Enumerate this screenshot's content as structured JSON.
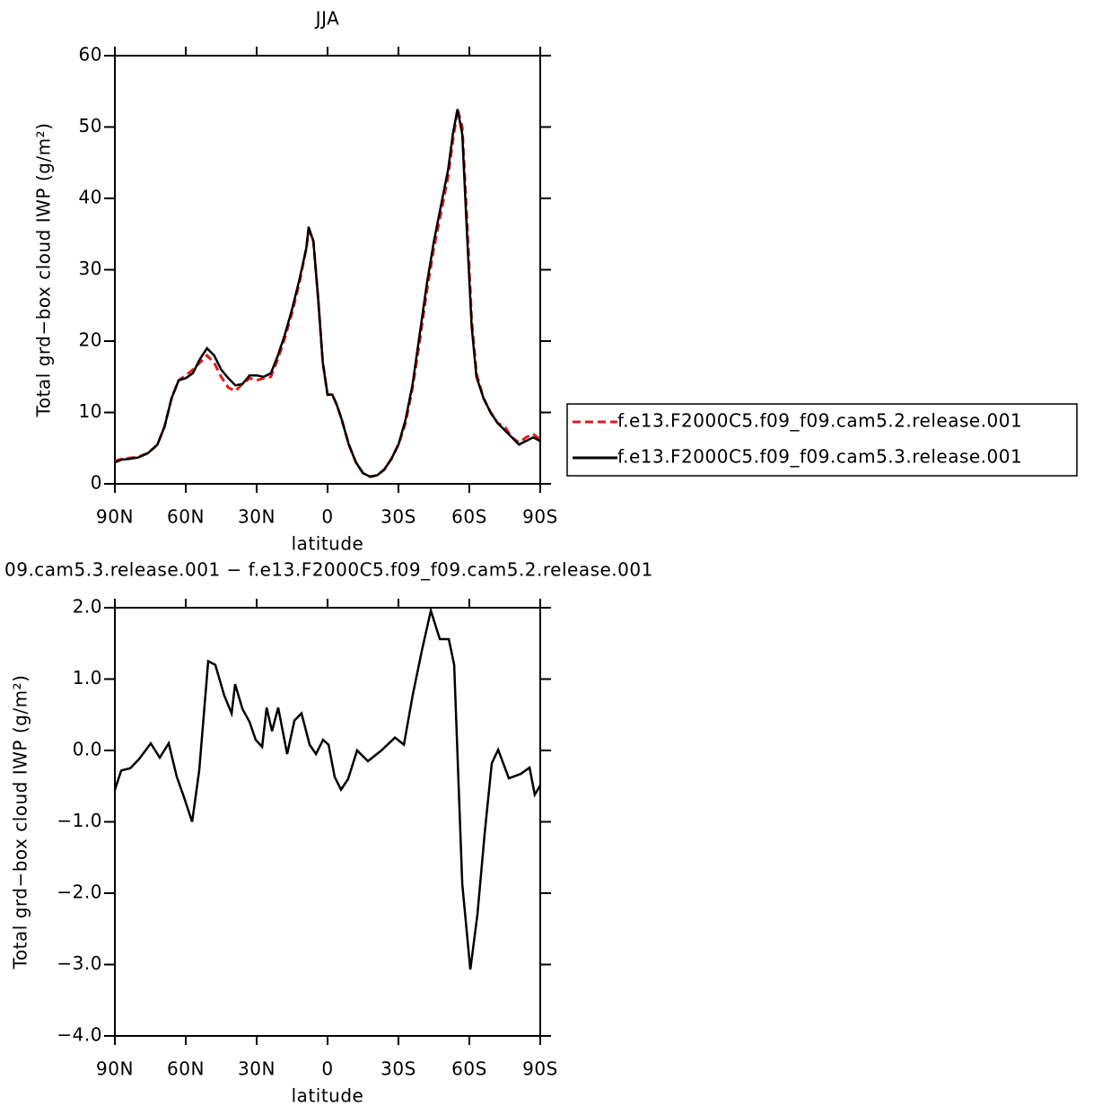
{
  "chart_data": [
    {
      "type": "line",
      "title": "JJA",
      "xlabel": "latitude",
      "ylabel": "Total grd−box cloud IWP (g/m²)",
      "x": [
        90,
        87,
        84,
        80,
        76,
        72,
        69,
        66,
        63,
        60,
        57,
        54,
        51,
        48,
        45,
        42,
        39,
        36,
        33,
        30,
        27,
        24,
        21,
        18,
        15,
        12,
        9,
        8,
        6,
        4,
        2,
        0,
        -2,
        -4,
        -6,
        -9,
        -12,
        -15,
        -18,
        -21,
        -24,
        -27,
        -30,
        -33,
        -36,
        -39,
        -42,
        -45,
        -48,
        -51,
        -53,
        -55,
        -57,
        -59,
        -61,
        -63,
        -66,
        -69,
        -72,
        -75,
        -78,
        -81,
        -84,
        -87,
        -90
      ],
      "series": [
        {
          "name": "f.e13.F2000C5.f09_f09.cam5.2.release.001",
          "color": "#e41a1c",
          "linestyle": "dashed",
          "values": [
            3.2,
            3.5,
            3.6,
            3.8,
            4.3,
            5.5,
            8,
            12,
            14.5,
            15.2,
            16,
            17,
            18,
            17,
            15,
            13.5,
            13,
            14,
            14.8,
            14.5,
            14.8,
            15,
            17.5,
            20.5,
            24,
            28,
            33,
            35.5,
            34,
            26,
            17,
            12.5,
            12.5,
            11,
            9,
            5.5,
            3,
            1.5,
            1,
            1.2,
            2,
            3.5,
            5.5,
            8.5,
            13.5,
            20,
            27,
            33,
            38,
            43,
            48,
            52.5,
            50,
            37,
            23,
            15.5,
            12,
            10,
            8.5,
            8,
            6.5,
            5.8,
            6.5,
            7,
            6.2
          ]
        },
        {
          "name": "f.e13.F2000C5.f09_f09.cam5.3.release.001",
          "color": "#000000",
          "linestyle": "solid",
          "values": [
            3.0,
            3.4,
            3.5,
            3.7,
            4.3,
            5.5,
            8,
            12,
            14.5,
            14.8,
            15.5,
            17.5,
            19,
            18,
            16,
            14.8,
            13.8,
            14,
            15.2,
            15.2,
            15,
            15.5,
            18,
            21,
            24.5,
            28.5,
            33,
            36,
            34,
            26,
            17,
            12.5,
            12.5,
            11,
            9,
            5.5,
            3,
            1.5,
            1,
            1.2,
            2,
            3.5,
            5.5,
            9,
            14,
            21,
            28,
            34,
            39,
            44,
            49,
            52.5,
            49,
            35,
            22,
            15,
            12,
            10,
            8.5,
            7.5,
            6.5,
            5.5,
            6,
            6.5,
            6
          ]
        }
      ],
      "xlim": [
        90,
        -90
      ],
      "xticks": [
        {
          "value": 90,
          "label": "90N"
        },
        {
          "value": 60,
          "label": "60N"
        },
        {
          "value": 30,
          "label": "30N"
        },
        0,
        {
          "value": -30,
          "label": "30S"
        },
        {
          "value": -60,
          "label": "60S"
        },
        {
          "value": -90,
          "label": "90S"
        }
      ],
      "ylim": [
        0,
        60
      ],
      "yticks": [
        0,
        10,
        20,
        30,
        40,
        50,
        60
      ],
      "legend": "right"
    },
    {
      "type": "line",
      "title": "09.cam5.3.release.001 − f.e13.F2000C5.f09_f09.cam5.2.release.001",
      "xlabel": "latitude",
      "ylabel": "Total grd−box cloud IWP (g/m²)",
      "x": [
        90,
        87.3,
        83.5,
        79.7,
        74.8,
        71,
        67.2,
        63.8,
        60.8,
        57.3,
        54.3,
        50.5,
        47.5,
        43.7,
        40.6,
        39.1,
        36,
        33,
        30.4,
        27.7,
        25.8,
        23.5,
        20.9,
        17.1,
        14,
        11,
        7.6,
        4.9,
        1.9,
        -0.4,
        -3,
        -5.7,
        -8.7,
        -12.5,
        -17.1,
        -22.8,
        -28.5,
        -32.3,
        -36,
        -39.9,
        -43.7,
        -47.5,
        -51.3,
        -53.6,
        -57,
        -60.4,
        -63.4,
        -66.5,
        -69.5,
        -72.2,
        -76.7,
        -81.7,
        -85.5,
        -87.7,
        -90
      ],
      "values": [
        -0.55,
        -0.28,
        -0.25,
        -0.12,
        0.1,
        -0.1,
        0.1,
        -0.37,
        -0.65,
        -1.0,
        -0.28,
        1.25,
        1.2,
        0.77,
        0.52,
        0.93,
        0.58,
        0.4,
        0.15,
        0.05,
        0.6,
        0.27,
        0.6,
        -0.05,
        0.42,
        0.52,
        0.08,
        -0.05,
        0.15,
        0.08,
        -0.37,
        -0.55,
        -0.4,
        0.0,
        -0.15,
        0.0,
        0.18,
        0.08,
        0.77,
        1.4,
        1.96,
        1.56,
        1.56,
        1.2,
        -1.87,
        -3.07,
        -2.3,
        -1.16,
        -0.18,
        0.01,
        -0.39,
        -0.33,
        -0.24,
        -0.62,
        -0.49
      ],
      "color": "#000000",
      "xlim": [
        90,
        -90
      ],
      "xticks": [
        {
          "value": 90,
          "label": "90N"
        },
        {
          "value": 60,
          "label": "60N"
        },
        {
          "value": 30,
          "label": "30N"
        },
        0,
        {
          "value": -30,
          "label": "30S"
        },
        {
          "value": -60,
          "label": "60S"
        },
        {
          "value": -90,
          "label": "90S"
        }
      ],
      "ylim": [
        -4,
        2
      ],
      "yticks": [
        {
          "value": -4,
          "label": "−4.0"
        },
        {
          "value": -3,
          "label": "−3.0"
        },
        {
          "value": -2,
          "label": "−2.0"
        },
        {
          "value": -1,
          "label": "−1.0"
        },
        {
          "value": 0,
          "label": "0.0"
        },
        {
          "value": 1,
          "label": "1.0"
        },
        {
          "value": 2,
          "label": "2.0"
        }
      ]
    }
  ]
}
